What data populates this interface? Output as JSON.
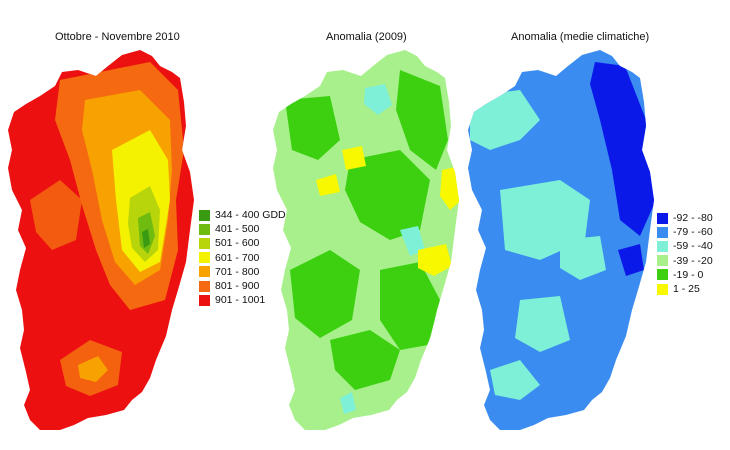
{
  "maps": [
    {
      "title": "Ottobre - Novembre 2010"
    },
    {
      "title": "Anomalia (2009)"
    },
    {
      "title": "Anomalia (medie climatiche)"
    }
  ],
  "legend_gdd": [
    {
      "label": "344 - 400 GDD",
      "color": "#3a9a12"
    },
    {
      "label": "401 - 500",
      "color": "#6fbb10"
    },
    {
      "label": "501 - 600",
      "color": "#b8d40a"
    },
    {
      "label": "601 - 700",
      "color": "#f4f200"
    },
    {
      "label": "701 - 800",
      "color": "#f7a200"
    },
    {
      "label": "801 - 900",
      "color": "#f56a10"
    },
    {
      "label": "901 - 1001",
      "color": "#ec1010"
    }
  ],
  "legend_anomaly": [
    {
      "label": "-92 - -80",
      "color": "#0a18e8"
    },
    {
      "label": "-79 - -60",
      "color": "#3a8cf0"
    },
    {
      "label": "-59 - -40",
      "color": "#7ff0d8"
    },
    {
      "label": "-39 - -20",
      "color": "#a8f08c"
    },
    {
      "label": "-19 - 0",
      "color": "#3cd010"
    },
    {
      "label": "1 - 25",
      "color": "#f8f800"
    }
  ]
}
